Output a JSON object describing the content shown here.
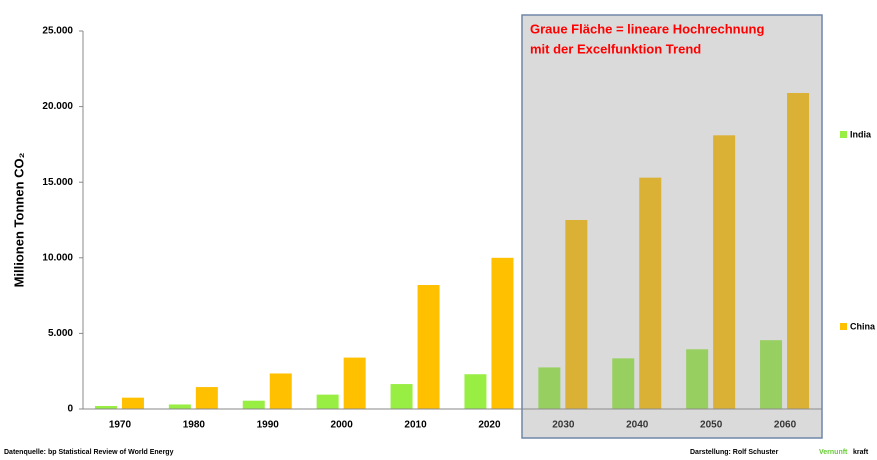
{
  "chart_data": {
    "type": "bar",
    "y_axis_label": "Millionen Tonnen CO₂",
    "annotations": [
      "Graue Fläche = lineare Hochrechnung",
      "mit der Excelfunktion Trend"
    ],
    "source": "Datenquelle: bp Statistical Review of World Energy",
    "credit": "Darstellung:  Rolf Schuster",
    "logo_prefix": "Vernunft",
    "logo_suffix": "kraft",
    "categories": [
      "1970",
      "1980",
      "1990",
      "2000",
      "2010",
      "2020",
      "2030",
      "2040",
      "2050",
      "2060"
    ],
    "series": [
      {
        "name": "India",
        "color": "#99ee44",
        "values": [
          200,
          300,
          550,
          950,
          1650,
          2300,
          2750,
          3350,
          3950,
          4550
        ]
      },
      {
        "name": "China",
        "color": "#ffc000",
        "values": [
          750,
          1450,
          2350,
          3400,
          8200,
          10000,
          12500,
          15300,
          18100,
          20900
        ]
      }
    ],
    "ylim": [
      0,
      25000
    ],
    "yticks": [
      0,
      {
        "value": 5000,
        "label": "5.000"
      },
      {
        "value": 10000,
        "label": "10.000"
      },
      {
        "value": 15000,
        "label": "15.000"
      },
      {
        "value": 20000,
        "label": "20.000"
      },
      {
        "value": 25000,
        "label": "25.000"
      }
    ],
    "annotation_color": "#ff0000",
    "grid": false
  }
}
